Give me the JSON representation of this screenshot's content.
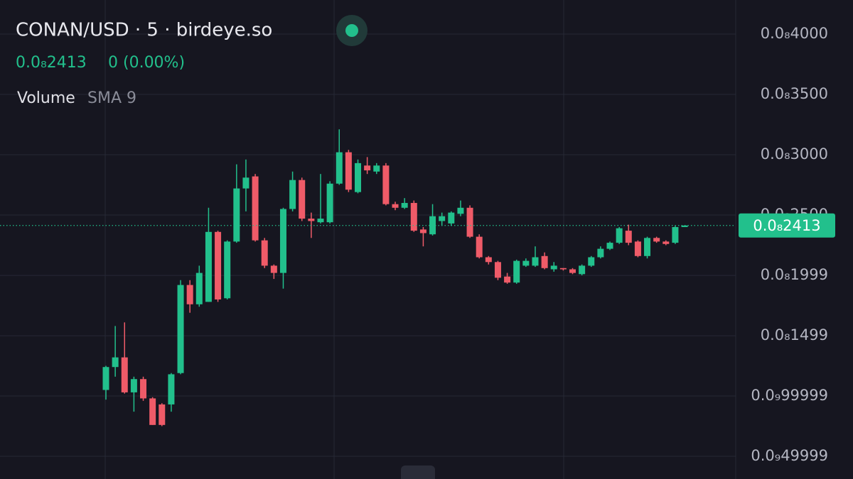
{
  "chart_data": {
    "type": "candlestick",
    "title": "CONAN/USD · 5 · birdeye.so",
    "last": {
      "value": 2.413e-09,
      "label": "0.0₈2413"
    },
    "change": "0 (0.00%)",
    "indicator": "Volume",
    "indicator_setting": "SMA 9",
    "up_color": "#22c08c",
    "down_color": "#ef5b68",
    "ylim": [
      3.12e-10,
      4.282e-09
    ],
    "yticks": [
      {
        "value": 4e-09,
        "label": "0.0₈4000"
      },
      {
        "value": 3.5e-09,
        "label": "0.0₈3500"
      },
      {
        "value": 3e-09,
        "label": "0.0₈3000"
      },
      {
        "value": 2.5e-09,
        "label": "0.0₈2500"
      },
      {
        "value": 1.999e-09,
        "label": "0.0₈1999"
      },
      {
        "value": 1.499e-09,
        "label": "0.0₈1499"
      },
      {
        "value": 9.9999e-10,
        "label": "0.0₉99999"
      },
      {
        "value": 4.9999e-10,
        "label": "0.0₉49999"
      }
    ],
    "grid": true,
    "open": [
      1.05e-09,
      1.24e-09,
      1.32e-09,
      1.03e-09,
      1.14e-09,
      9.8e-10,
      9.3e-10,
      9.3e-10,
      1.19e-09,
      1.92e-09,
      1.76e-09,
      1.78e-09,
      2.36e-09,
      1.81e-09,
      2.28e-09,
      2.72e-09,
      2.82e-09,
      2.29e-09,
      2.08e-09,
      2.02e-09,
      2.55e-09,
      2.79e-09,
      2.47e-09,
      2.44e-09,
      2.44e-09,
      2.76e-09,
      3.02e-09,
      2.69e-09,
      2.91e-09,
      2.86e-09,
      2.91e-09,
      2.59e-09,
      2.56e-09,
      2.6e-09,
      2.38e-09,
      2.34e-09,
      2.45e-09,
      2.43e-09,
      2.51e-09,
      2.56e-09,
      2.32e-09,
      2.15e-09,
      2.11e-09,
      1.99e-09,
      1.94e-09,
      2.08e-09,
      2.08e-09,
      2.16e-09,
      2.05e-09,
      2.06e-09,
      2.05e-09,
      2.01e-09,
      2.08e-09,
      2.15e-09,
      2.22e-09,
      2.27e-09,
      2.37e-09,
      2.28e-09,
      2.16e-09,
      2.31e-09,
      2.28e-09,
      2.27e-09,
      2.4e-09
    ],
    "high": [
      1.25e-09,
      1.58e-09,
      1.61e-09,
      1.16e-09,
      1.16e-09,
      9.9e-10,
      9.4e-10,
      1.19e-09,
      1.96e-09,
      1.96e-09,
      2.08e-09,
      2.56e-09,
      2.37e-09,
      2.29e-09,
      2.92e-09,
      2.96e-09,
      2.84e-09,
      2.31e-09,
      2.09e-09,
      2.56e-09,
      2.86e-09,
      2.81e-09,
      2.52e-09,
      2.84e-09,
      2.78e-09,
      3.21e-09,
      3.04e-09,
      2.96e-09,
      2.98e-09,
      2.93e-09,
      2.93e-09,
      2.61e-09,
      2.64e-09,
      2.62e-09,
      2.4e-09,
      2.59e-09,
      2.52e-09,
      2.53e-09,
      2.62e-09,
      2.58e-09,
      2.34e-09,
      2.16e-09,
      2.12e-09,
      2.02e-09,
      2.13e-09,
      2.14e-09,
      2.24e-09,
      2.19e-09,
      2.11e-09,
      2.06e-09,
      2.06e-09,
      2.09e-09,
      2.16e-09,
      2.24e-09,
      2.28e-09,
      2.4e-09,
      2.42e-09,
      2.29e-09,
      2.32e-09,
      2.32e-09,
      2.29e-09,
      2.41e-09,
      2.413e-09
    ],
    "low": [
      9.7e-10,
      1.16e-09,
      1.02e-09,
      8.7e-10,
      9.6e-10,
      7.6e-10,
      7.5e-10,
      8.7e-10,
      1.18e-09,
      1.69e-09,
      1.74e-09,
      1.78e-09,
      1.78e-09,
      1.8e-09,
      2.27e-09,
      2.53e-09,
      2.28e-09,
      2.06e-09,
      1.97e-09,
      1.89e-09,
      2.53e-09,
      2.45e-09,
      2.31e-09,
      2.43e-09,
      2.43e-09,
      2.75e-09,
      2.69e-09,
      2.68e-09,
      2.84e-09,
      2.84e-09,
      2.58e-09,
      2.54e-09,
      2.55e-09,
      2.36e-09,
      2.24e-09,
      2.33e-09,
      2.41e-09,
      2.41e-09,
      2.49e-09,
      2.31e-09,
      2.14e-09,
      2.09e-09,
      1.96e-09,
      1.93e-09,
      1.93e-09,
      2.07e-09,
      2.07e-09,
      2.05e-09,
      2.03e-09,
      2.04e-09,
      2.01e-09,
      2e-09,
      2.07e-09,
      2.14e-09,
      2.21e-09,
      2.26e-09,
      2.25e-09,
      2.15e-09,
      2.14e-09,
      2.27e-09,
      2.25e-09,
      2.26e-09,
      2.4e-09
    ],
    "close": [
      1.24e-09,
      1.32e-09,
      1.03e-09,
      1.14e-09,
      9.8e-10,
      7.6e-10,
      7.6e-10,
      1.18e-09,
      1.92e-09,
      1.76e-09,
      2.02e-09,
      2.36e-09,
      1.8e-09,
      2.28e-09,
      2.72e-09,
      2.81e-09,
      2.29e-09,
      2.08e-09,
      2.02e-09,
      2.55e-09,
      2.79e-09,
      2.47e-09,
      2.45e-09,
      2.47e-09,
      2.76e-09,
      3.02e-09,
      2.71e-09,
      2.93e-09,
      2.87e-09,
      2.91e-09,
      2.59e-09,
      2.56e-09,
      2.6e-09,
      2.37e-09,
      2.35e-09,
      2.49e-09,
      2.49e-09,
      2.52e-09,
      2.56e-09,
      2.32e-09,
      2.15e-09,
      2.11e-09,
      1.98e-09,
      1.94e-09,
      2.12e-09,
      2.12e-09,
      2.15e-09,
      2.06e-09,
      2.08e-09,
      2.05e-09,
      2.02e-09,
      2.08e-09,
      2.15e-09,
      2.22e-09,
      2.27e-09,
      2.39e-09,
      2.27e-09,
      2.16e-09,
      2.31e-09,
      2.28e-09,
      2.26e-09,
      2.4e-09,
      2.413e-09
    ]
  }
}
